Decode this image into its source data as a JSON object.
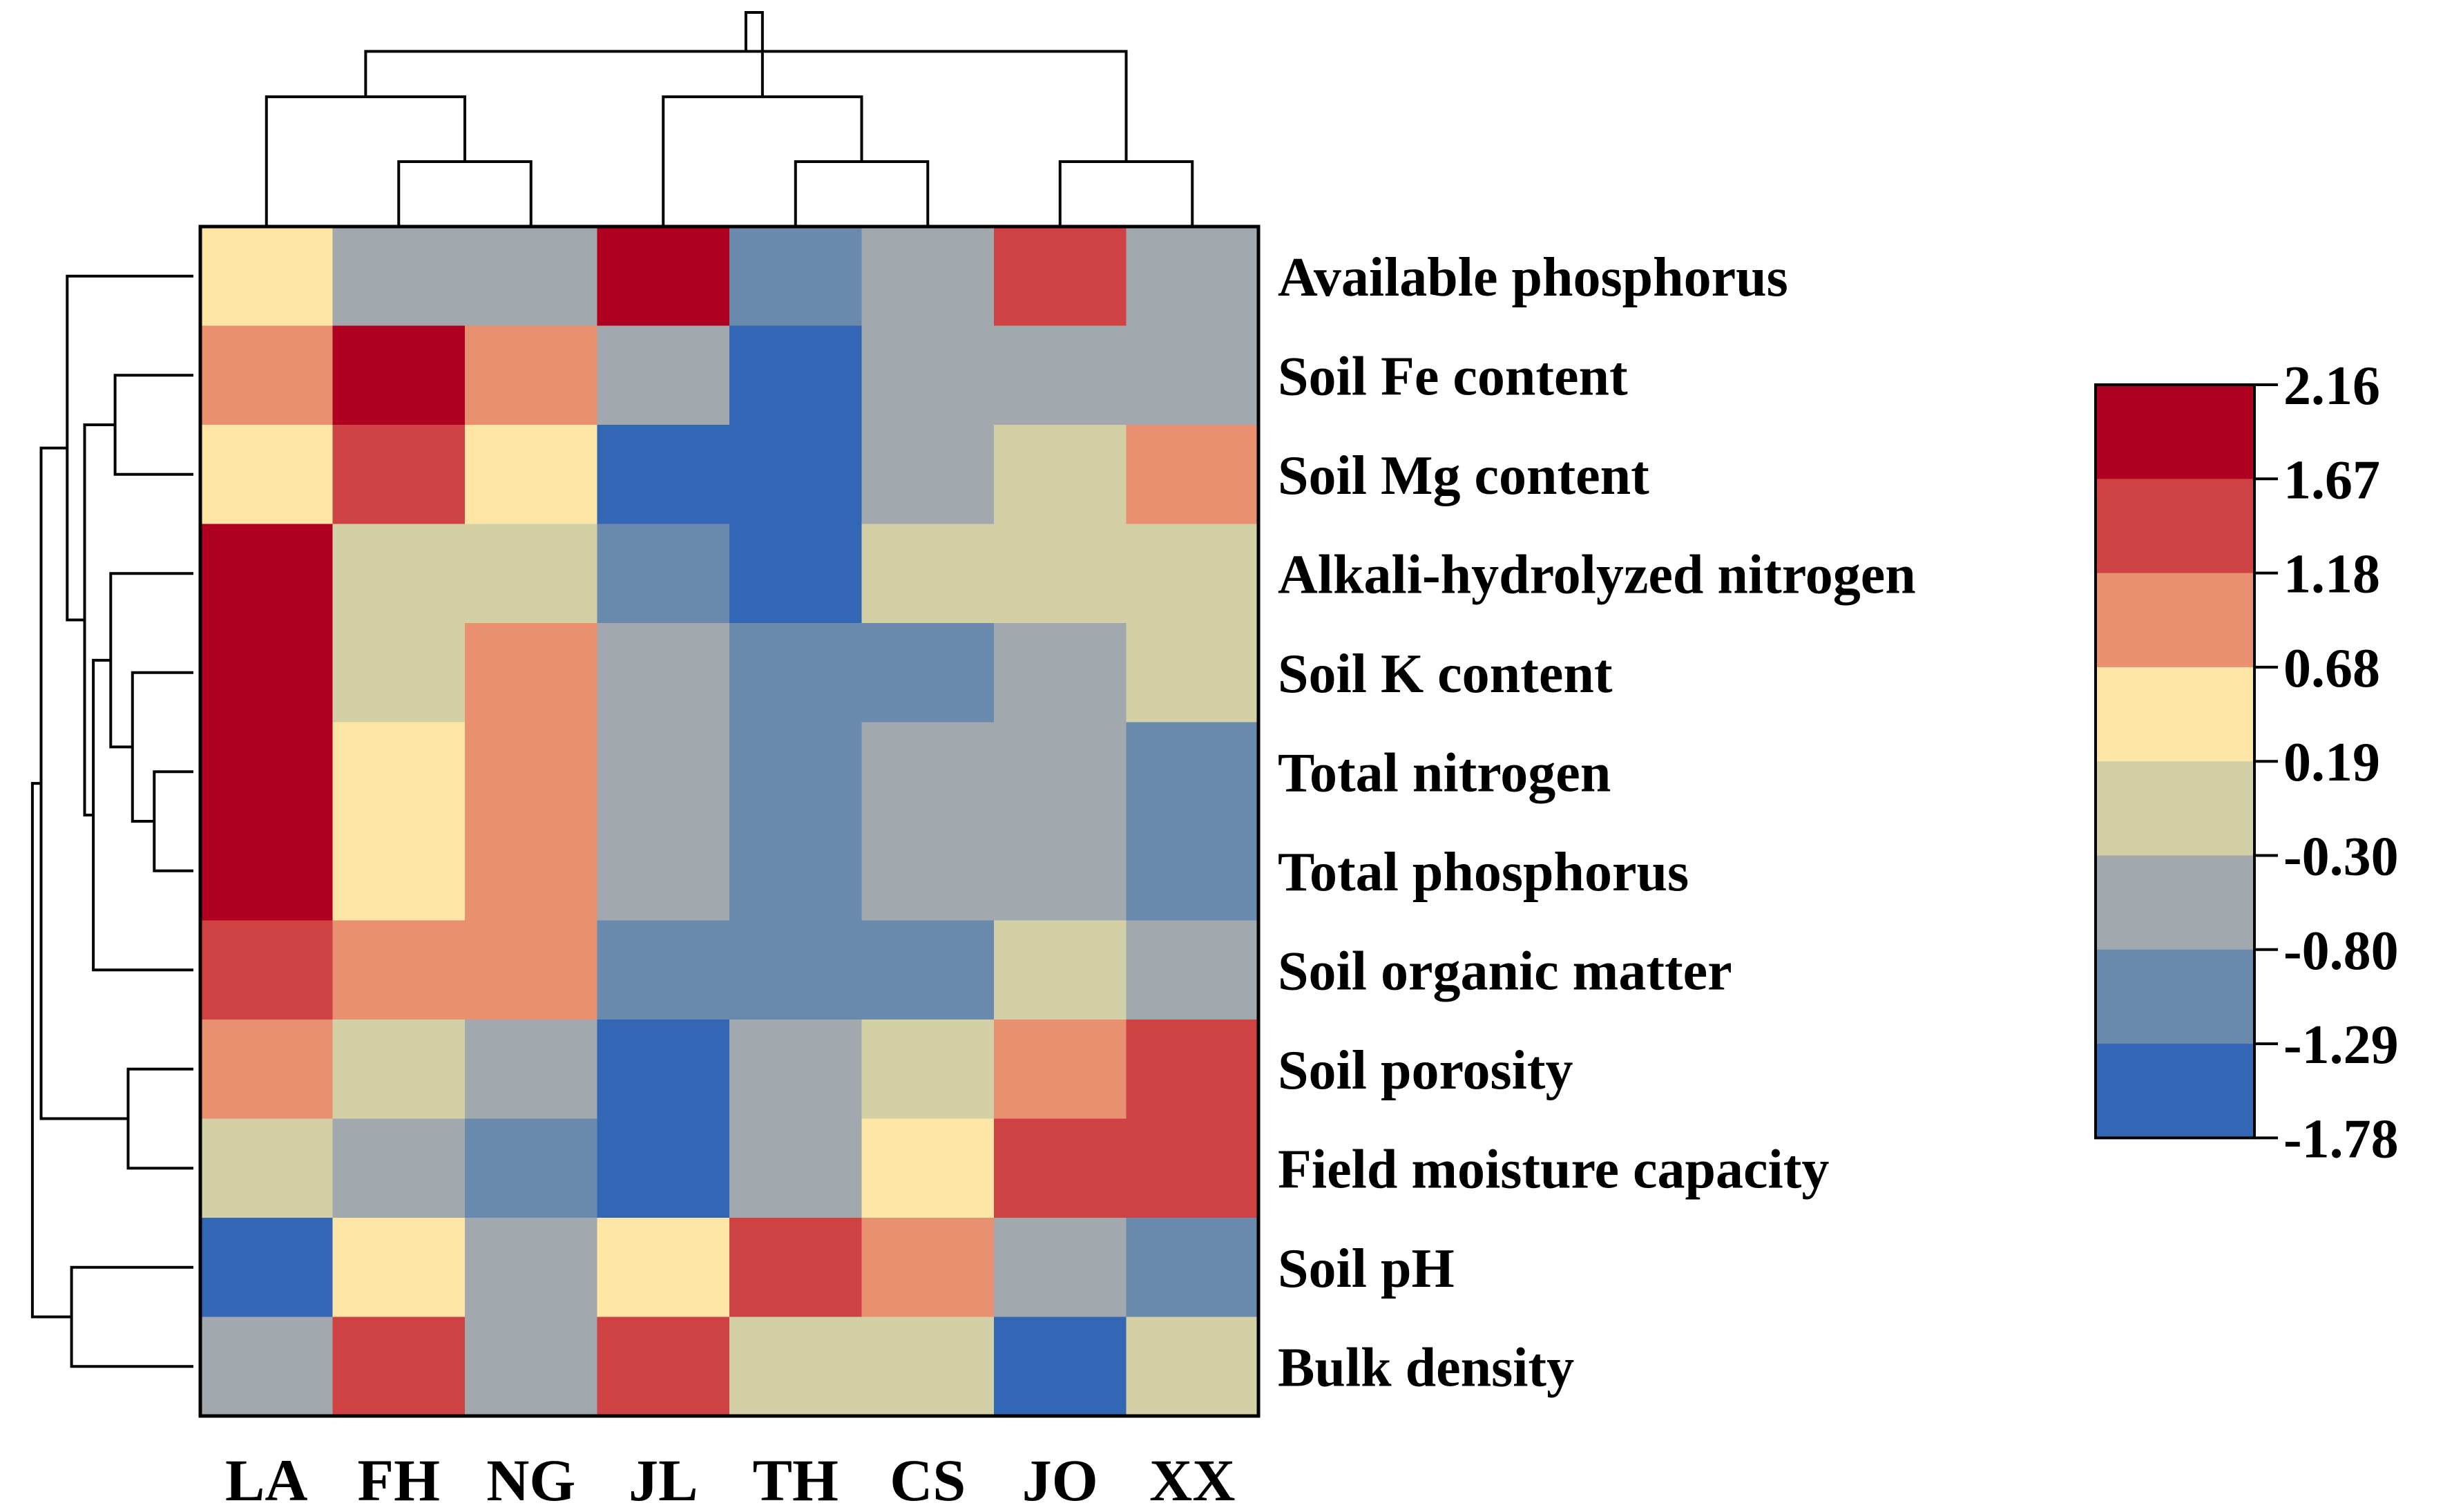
{
  "chart_data": {
    "type": "heatmap",
    "title": "",
    "xlabel": "",
    "ylabel": "",
    "x_categories": [
      "LA",
      "FH",
      "NG",
      "JL",
      "TH",
      "CS",
      "JO",
      "XX"
    ],
    "y_categories": [
      "Available phosphorus",
      "Soil Fe content",
      "Soil Mg content",
      "Alkali-hydrolyzed nitrogen",
      "Soil K content",
      "Total nitrogen",
      "Total phosphorus",
      "Soil organic matter",
      "Soil porosity",
      "Field moisture capacity",
      "Soil pH",
      "Bulk density"
    ],
    "values": [
      [
        0.4,
        -0.5,
        -0.5,
        2.0,
        -1.0,
        -0.5,
        1.4,
        -0.5
      ],
      [
        0.9,
        2.0,
        0.9,
        -0.5,
        -1.5,
        -0.5,
        -0.5,
        -0.5
      ],
      [
        0.4,
        1.4,
        0.4,
        -1.5,
        -1.5,
        -0.5,
        -0.05,
        0.9
      ],
      [
        2.0,
        -0.05,
        -0.05,
        -1.0,
        -1.5,
        -0.05,
        -0.05,
        -0.05
      ],
      [
        2.0,
        -0.05,
        0.9,
        -0.5,
        -1.0,
        -1.0,
        -0.5,
        -0.05
      ],
      [
        2.0,
        0.4,
        0.9,
        -0.5,
        -1.0,
        -0.5,
        -0.5,
        -1.0
      ],
      [
        2.0,
        0.4,
        0.9,
        -0.5,
        -1.0,
        -0.5,
        -0.5,
        -1.0
      ],
      [
        1.4,
        0.9,
        0.9,
        -1.0,
        -1.0,
        -1.0,
        -0.05,
        -0.5
      ],
      [
        0.9,
        -0.05,
        -0.5,
        -1.5,
        -0.5,
        -0.05,
        0.9,
        1.4
      ],
      [
        -0.05,
        -0.5,
        -1.0,
        -1.5,
        -0.5,
        0.4,
        1.4,
        1.4
      ],
      [
        -1.5,
        0.4,
        -0.5,
        0.4,
        1.4,
        0.9,
        -0.5,
        -1.0
      ],
      [
        -0.5,
        1.4,
        -0.5,
        1.4,
        -0.05,
        -0.05,
        -1.5,
        -0.05
      ]
    ],
    "color_scale": {
      "breaks": [
        2.16,
        1.67,
        1.18,
        0.68,
        0.19,
        -0.3,
        -0.8,
        -1.29,
        -1.78
      ],
      "break_labels": [
        "2.16",
        "1.67",
        "1.18",
        "0.68",
        "0.19",
        "-0.30",
        "-0.80",
        "-1.29",
        "-1.78"
      ],
      "colors": [
        "#b0001f",
        "#cf4244",
        "#e8906f",
        "#fde5a5",
        "#d3d0a6",
        "#a1a8ae",
        "#6989ad",
        "#3366b5"
      ]
    },
    "legend_position": "right",
    "column_dendrogram": {
      "leaf_order": [
        "LA",
        "FH",
        "NG",
        "JL",
        "TH",
        "CS",
        "JO",
        "XX"
      ],
      "merges": [
        [
          1,
          2,
          1
        ],
        [
          4,
          5,
          1
        ],
        [
          6,
          7,
          1
        ],
        [
          0,
          8,
          2
        ],
        [
          3,
          9,
          2
        ],
        [
          11,
          10,
          2.7
        ],
        [
          12,
          13,
          3.3
        ]
      ],
      "max_height": 3.3
    },
    "row_dendrogram": {
      "leaf_order": [
        "Available phosphorus",
        "Soil Fe content",
        "Soil Mg content",
        "Alkali-hydrolyzed nitrogen",
        "Soil K content",
        "Total nitrogen",
        "Total phosphorus",
        "Soil organic matter",
        "Soil porosity",
        "Field moisture capacity",
        "Soil pH",
        "Bulk density"
      ],
      "merges": [
        [
          5,
          6,
          0.9
        ],
        [
          4,
          12,
          1.4
        ],
        [
          3,
          13,
          1.9
        ],
        [
          1,
          2,
          1.8
        ],
        [
          8,
          9,
          1.5
        ],
        [
          10,
          11,
          2.8
        ],
        [
          7,
          14,
          2.3
        ],
        [
          15,
          18,
          2.5
        ],
        [
          0,
          19,
          2.9
        ],
        [
          16,
          20,
          3.5
        ],
        [
          17,
          21,
          3.7
        ]
      ],
      "max_height": 4.0
    }
  }
}
